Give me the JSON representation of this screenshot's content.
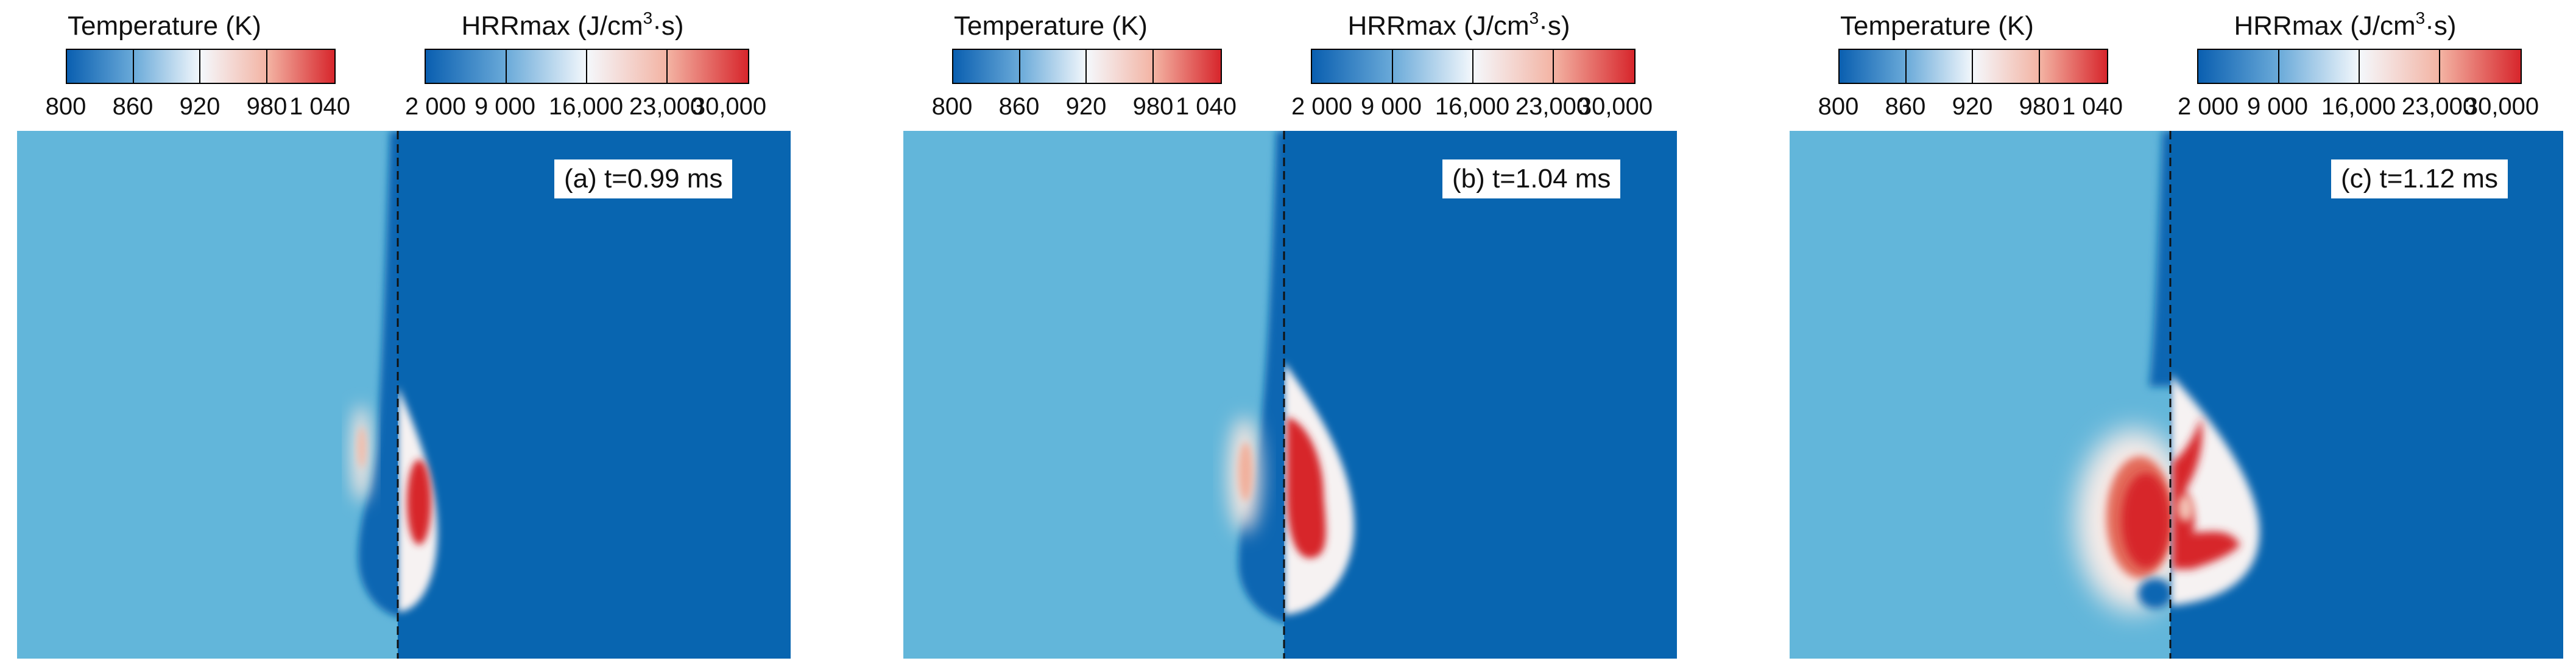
{
  "colorbars": {
    "temperature": {
      "title": "Temperature (K)",
      "ticks": [
        "800",
        "860",
        "920",
        "980",
        "1 040"
      ],
      "colors": [
        "#0a5fb0",
        "#6aaad9",
        "#f4f8fc",
        "#f3b3a3",
        "#d7262c"
      ]
    },
    "hrr": {
      "title_main": "HRRmax (J/cm",
      "title_sup": "3",
      "title_tail": "·s)",
      "ticks": [
        "2 000",
        "9 000",
        "16,000",
        "23,000",
        "30,000"
      ],
      "colors": [
        "#0a5fb0",
        "#6aaad9",
        "#f4f8fc",
        "#f3b3a3",
        "#d7262c"
      ]
    }
  },
  "panels": [
    {
      "label": "(a) t=0.99 ms",
      "time_ms": 0.99
    },
    {
      "label": "(b) t=1.04 ms",
      "time_ms": 1.04
    },
    {
      "label": "(c) t=1.12 ms",
      "time_ms": 1.12
    }
  ],
  "field_colors": {
    "left_background": "#62b6da",
    "right_background": "#0865b0",
    "dashed_line": "#111111"
  }
}
